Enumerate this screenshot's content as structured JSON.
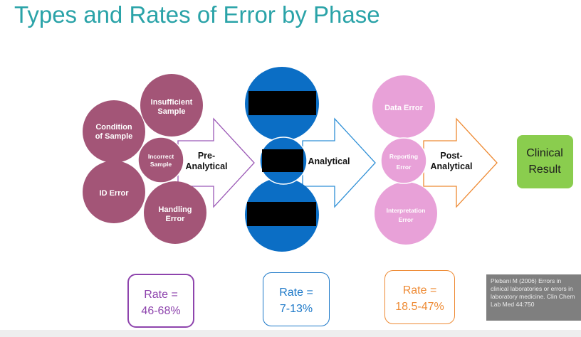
{
  "title": "Types and Rates of Error by Phase",
  "colors": {
    "title": "#2aa3a8",
    "pre_analytical": "#a35577",
    "analytical": "#0b6ec5",
    "post_analytical": "#e8a1d8",
    "result": "#8acd4e",
    "pre_rate_border": "#8e44ad",
    "analytical_rate_border": "#1c78c8",
    "post_rate_border": "#ee8a33"
  },
  "pre_analytical": {
    "circles": [
      {
        "lines": [
          "Insufficient",
          "Sample"
        ]
      },
      {
        "lines": [
          "Condition",
          "of Sample"
        ]
      },
      {
        "lines": [
          "Incorrect",
          "Sample"
        ]
      },
      {
        "lines": [
          "ID Error"
        ]
      },
      {
        "lines": [
          "Handling",
          "Error"
        ]
      }
    ],
    "label": [
      "Pre-",
      "Analytical"
    ],
    "rate_label": "Rate =",
    "rate_value": "46-68%"
  },
  "analytical": {
    "label": [
      "Analytical"
    ],
    "rate_label": "Rate =",
    "rate_value": "7-13%"
  },
  "post_analytical": {
    "circles": [
      {
        "lines": [
          "Data Error"
        ]
      },
      {
        "lines": [
          "Reporting",
          "Error"
        ]
      },
      {
        "lines": [
          "Interpretation",
          "Error"
        ]
      }
    ],
    "label": [
      "Post-",
      "Analytical"
    ],
    "rate_label": "Rate =",
    "rate_value": "18.5-47%"
  },
  "result": {
    "lines": [
      "Clinical",
      "Result"
    ]
  },
  "citation": "Plebani M (2006) Errors in clinical laboratories or errors in laboratory medicine. Clin Chem Lab Med 44:750"
}
